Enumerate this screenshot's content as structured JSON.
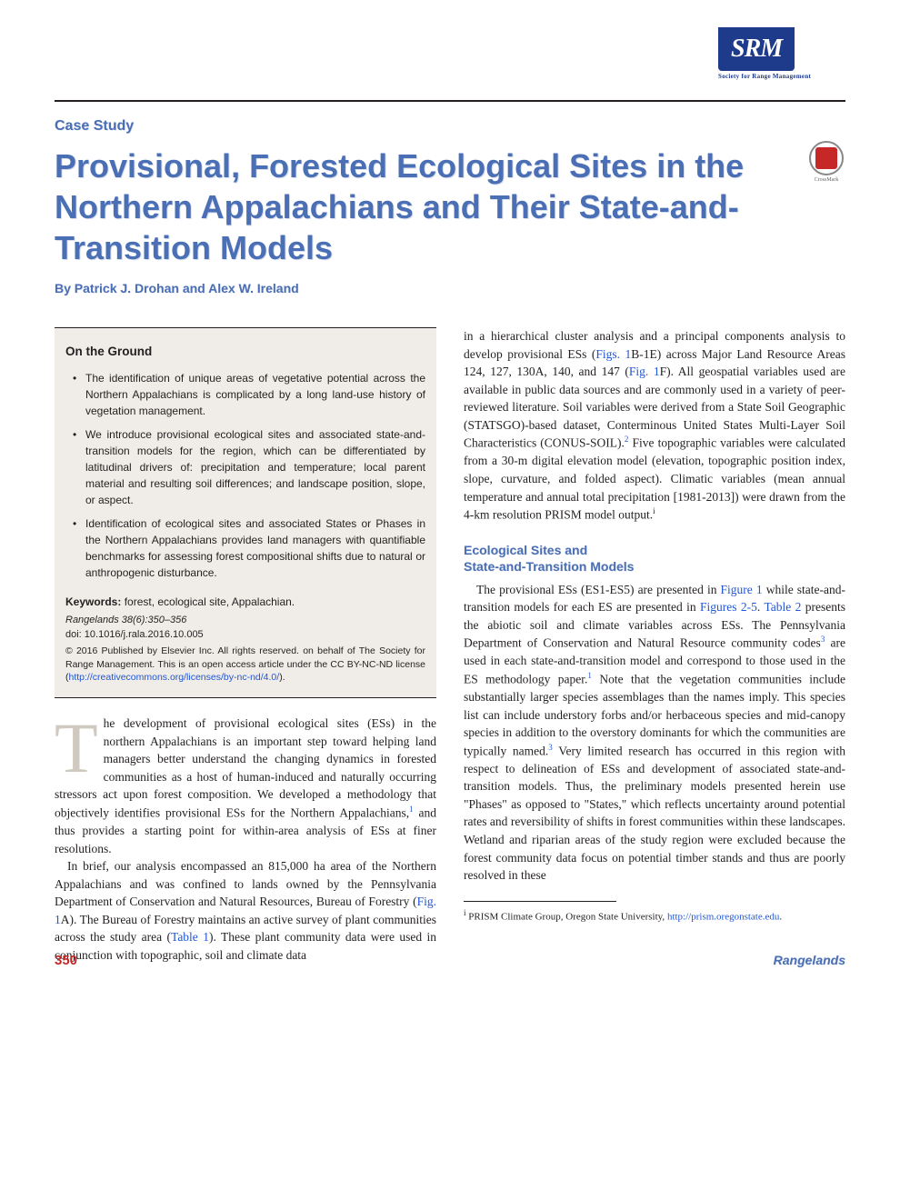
{
  "logo": {
    "text": "SRM",
    "subtitle": "Society for Range Management"
  },
  "caseStudy": "Case Study",
  "title": "Provisional, Forested Ecological Sites in the Northern Appalachians and Their State-and-Transition Models",
  "authors": "By Patrick J. Drohan and Alex W. Ireland",
  "crossmark": {
    "label": "CrossMark"
  },
  "onGround": {
    "title": "On the Ground",
    "bullets": [
      "The identification of unique areas of vegetative potential across the Northern Appalachians is complicated by a long land-use history of vegetation management.",
      "We introduce provisional ecological sites and associated state-and-transition models for the region, which can be differentiated by latitudinal drivers of: precipitation and temperature; local parent material and resulting soil differences; and landscape position, slope, or aspect.",
      "Identification of ecological sites and associated States or Phases in the Northern Appalachians provides land managers with quantifiable benchmarks for assessing forest compositional shifts due to natural or anthropogenic disturbance."
    ],
    "keywordsLabel": "Keywords:",
    "keywords": " forest, ecological site, Appalachian.",
    "citation": "Rangelands 38(6):350–356",
    "doi": "doi: 10.1016/j.rala.2016.10.005",
    "copyright_a": "© 2016 Published by Elsevier Inc. All rights reserved. on behalf of The Society for Range Management. This is an open access article under the CC BY-NC-ND license (",
    "copyright_link": "http://creativecommons.org/licenses/by-nc-nd/4.0/",
    "copyright_b": ")."
  },
  "leftBody": {
    "p1_a": "he development of provisional ecological sites (ESs) in the northern Appalachians is an important step toward helping land managers better understand the changing dynamics in forested communities as a host of human-induced and naturally occurring stressors act upon forest composition. We developed a methodology that objectively identifies provisional ESs for the Northern Appalachians,",
    "p1_b": " and thus provides a starting point for within-area analysis of ESs at finer resolutions.",
    "p2_a": "In brief, our analysis encompassed an 815,000 ha area of the Northern Appalachians and was confined to lands owned by the Pennsylvania Department of Conservation and Natural Resources, Bureau of Forestry (",
    "fig1a": "Fig. 1",
    "p2_b": "A). The Bureau of Forestry maintains an active survey of plant communities across the study area (",
    "tab1": "Table 1",
    "p2_c": "). These plant community data were used in conjunction with topographic, soil and climate data"
  },
  "rightBody": {
    "p1_a": "in a hierarchical cluster analysis and a principal components analysis to develop provisional ESs (",
    "figs1b": "Figs. 1",
    "p1_b": "B-1E) across Major Land Resource Areas 124, 127, 130A, 140, and 147 (",
    "fig1f": "Fig. 1",
    "p1_c": "F). All geospatial variables used are available in public data sources and are commonly used in a variety of peer-reviewed literature. Soil variables were derived from a State Soil Geographic (STATSGO)-based dataset, Conterminous United States Multi-Layer Soil Characteristics (CONUS-SOIL).",
    "p1_d": " Five topographic variables were calculated from a 30-m digital elevation model (elevation, topographic position index, slope, curvature, and folded aspect). Climatic variables (mean annual temperature and annual total precipitation [1981-2013]) were drawn from the 4-km resolution PRISM model output.",
    "sectionHead": "Ecological Sites and\nState-and-Transition Models",
    "p2_a": "The provisional ESs (ES1-ES5) are presented in ",
    "fig1": "Figure 1",
    "p2_b": " while state-and-transition models for each ES are presented in ",
    "figs25": "Figures 2-5",
    "p2_c": ". ",
    "tab2": "Table 2",
    "p2_d": " presents the abiotic soil and climate variables across ESs. The Pennsylvania Department of Conservation and Natural Resource community codes",
    "p2_e": " are used in each state-and-transition model and correspond to those used in the ES methodology paper.",
    "p2_f": " Note that the vegetation communities include substantially larger species assemblages than the names imply. This species list can include understory forbs and/or herbaceous species and mid-canopy species in addition to the overstory dominants for which the communities are typically named.",
    "p2_g": " Very limited research has occurred in this region with respect to delineation of ESs and development of associated state-and-transition models. Thus, the preliminary models presented herein use \"Phases\" as opposed to \"States,\" which reflects uncertainty around potential rates and reversibility of shifts in forest communities within these landscapes. Wetland and riparian areas of the study region were excluded because the forest community data focus on potential timber stands and thus are poorly resolved in these",
    "footnote_a": "PRISM Climate Group, Oregon State University, ",
    "footnote_link": "http://prism.oregonstate.edu",
    "footnote_b": "."
  },
  "footer": {
    "pageNum": "350",
    "journal": "Rangelands"
  },
  "colors": {
    "brand_blue": "#4a6fb5",
    "link_blue": "#2156d4",
    "red": "#c62828",
    "box_bg": "#f0ede8",
    "dropcap": "#cfc9c0",
    "text": "#231f20"
  },
  "refs": {
    "r1": "1",
    "r2": "2",
    "r3": "3",
    "fi": "i"
  }
}
